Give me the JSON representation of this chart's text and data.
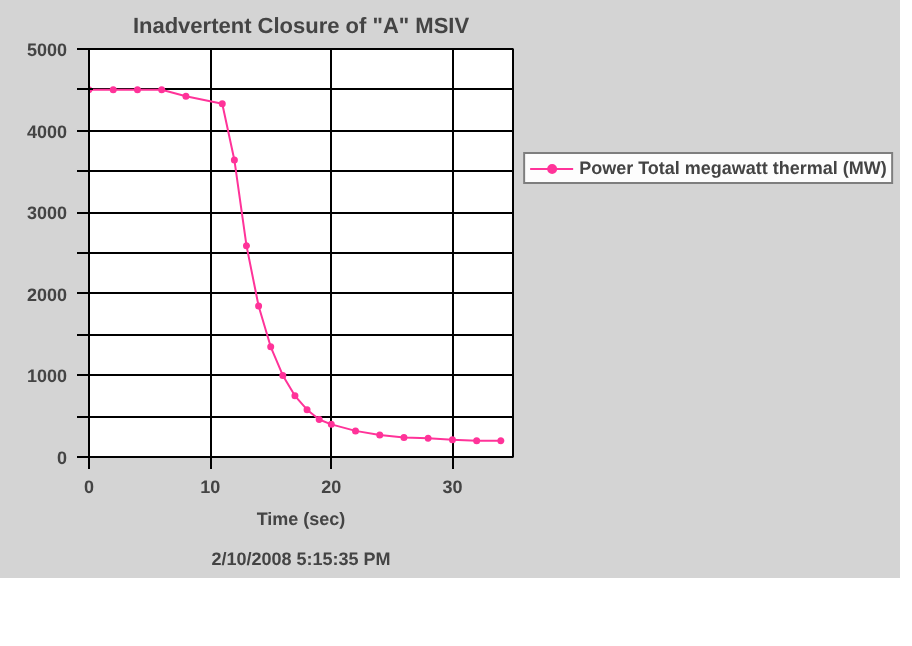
{
  "chart_data": {
    "type": "line",
    "title": "Inadvertent Closure of \"A\" MSIV",
    "xlabel": "Time (sec)",
    "x": [
      0,
      2,
      4,
      6,
      8,
      11,
      12,
      13,
      14,
      15,
      16,
      17,
      18,
      19,
      20,
      22,
      24,
      26,
      28,
      30,
      32,
      34
    ],
    "series": [
      {
        "name": "Power Total megawatt thermal (MW)",
        "color": "#ff3399",
        "values": [
          4500,
          4500,
          4500,
          4500,
          4420,
          4330,
          3640,
          2590,
          1850,
          1350,
          1000,
          750,
          580,
          460,
          400,
          320,
          270,
          240,
          230,
          210,
          200,
          200
        ]
      }
    ],
    "xlim": [
      0,
      35
    ],
    "xticks": [
      0,
      10,
      20,
      30
    ],
    "ylim": [
      0,
      5000
    ],
    "yticks": [
      0,
      {
        "value": 500,
        "label": null
      },
      1000,
      {
        "value": 1500,
        "label": null
      },
      2000,
      {
        "value": 2500,
        "label": null
      },
      3000,
      {
        "value": 3500,
        "label": null
      },
      4000,
      {
        "value": 4500,
        "label": null
      },
      5000
    ],
    "grid": true,
    "legend": "right",
    "marker": "circle",
    "line_style": "solid",
    "annotations": [
      "2/10/2008 5:15:35 PM"
    ]
  }
}
